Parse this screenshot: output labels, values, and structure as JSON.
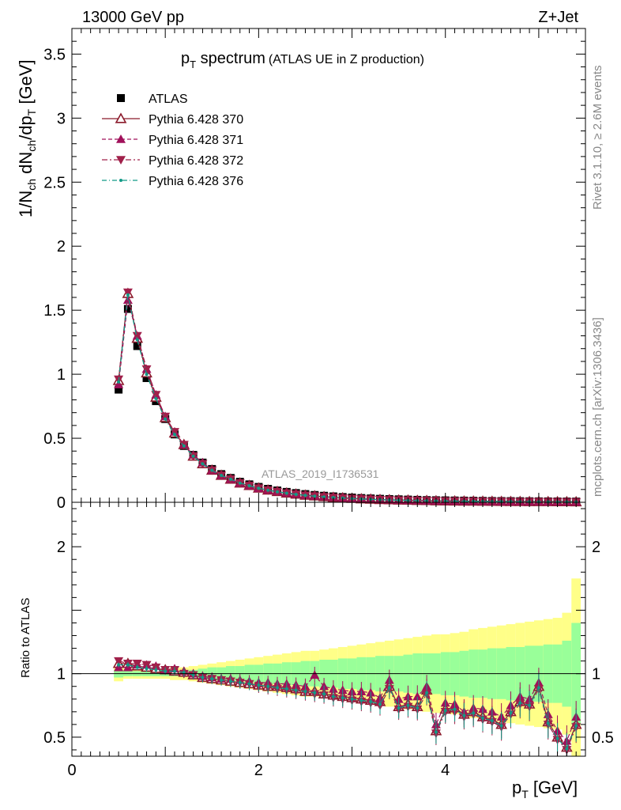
{
  "header": {
    "energy": "13000 GeV pp",
    "process": "Z+Jet"
  },
  "side": {
    "rivet": "Rivet 3.1.10, ≥ 2.6M events",
    "mcplots": "mcplots.cern.ch [arXiv:1306.3436]"
  },
  "watermark": "ATLAS_2019_I1736531",
  "colors": {
    "data": "#000000",
    "p370": "#8b1a2b",
    "p371": "#a0105a",
    "p372": "#a0204a",
    "p376": "#119a86",
    "band_green": "#99ff99",
    "band_yellow": "#ffff88"
  },
  "chart_data": [
    {
      "type": "scatter",
      "title": "p",
      "title_sub": "T",
      "title_tail": " spectrum",
      "title_small": "(ATLAS UE in Z production)",
      "ylabel": "1/N_ch dN_ch/dp_T [GeV]",
      "xlim": [
        0,
        5.5
      ],
      "ylim": [
        0,
        3.7
      ],
      "yticks": [
        0,
        0.5,
        1,
        1.5,
        2,
        2.5,
        3,
        3.5
      ],
      "ytick_labels": [
        "0",
        "0.5",
        "1",
        "1.5",
        "2",
        "2.5",
        "3",
        "3.5"
      ],
      "legend_position": "top-left",
      "x": [
        0.5,
        0.6,
        0.7,
        0.8,
        0.9,
        1.0,
        1.1,
        1.2,
        1.3,
        1.4,
        1.5,
        1.6,
        1.7,
        1.8,
        1.9,
        2.0,
        2.1,
        2.2,
        2.3,
        2.4,
        2.5,
        2.6,
        2.7,
        2.8,
        2.9,
        3.0,
        3.1,
        3.2,
        3.3,
        3.4,
        3.5,
        3.6,
        3.7,
        3.8,
        3.9,
        4.0,
        4.1,
        4.2,
        4.3,
        4.4,
        4.5,
        4.6,
        4.7,
        4.8,
        4.9,
        5.0,
        5.1,
        5.2,
        5.3,
        5.4
      ],
      "series": [
        {
          "name": "ATLAS",
          "marker": "square",
          "values": [
            0.88,
            1.51,
            1.22,
            0.97,
            0.79,
            0.65,
            0.53,
            0.44,
            0.37,
            0.31,
            0.26,
            0.22,
            0.19,
            0.16,
            0.14,
            0.12,
            0.105,
            0.092,
            0.081,
            0.072,
            0.064,
            0.057,
            0.051,
            0.046,
            0.041,
            0.037,
            0.033,
            0.03,
            0.027,
            0.025,
            0.023,
            0.021,
            0.019,
            0.017,
            0.016,
            0.015,
            0.014,
            0.013,
            0.012,
            0.011,
            0.01,
            0.0095,
            0.009,
            0.0085,
            0.008,
            0.0075,
            0.007,
            0.0065,
            0.006,
            0.0058
          ]
        },
        {
          "name": "Pythia 6.428 370",
          "marker": "triangle-open",
          "values": [
            0.95,
            1.63,
            1.28,
            1.01,
            0.82,
            0.66,
            0.54,
            0.45,
            0.36,
            0.3,
            0.25,
            0.21,
            0.18,
            0.15,
            0.13,
            0.11,
            0.095,
            0.083,
            0.072,
            0.063,
            0.055,
            0.049,
            0.043,
            0.038,
            0.034,
            0.03,
            0.026,
            0.024,
            0.021,
            0.019,
            0.017,
            0.016,
            0.014,
            0.013,
            0.011,
            0.01,
            0.009,
            0.0085,
            0.008,
            0.0072,
            0.0066,
            0.006,
            0.0056,
            0.0052,
            0.0048,
            0.0045,
            0.0042,
            0.0038,
            0.0035,
            0.0032
          ]
        },
        {
          "name": "Pythia 6.428 371",
          "marker": "triangle-up",
          "values": [
            0.92,
            1.58,
            1.3,
            1.04,
            0.84,
            0.67,
            0.55,
            0.45,
            0.37,
            0.31,
            0.25,
            0.21,
            0.18,
            0.15,
            0.13,
            0.11,
            0.096,
            0.085,
            0.074,
            0.065,
            0.057,
            0.05,
            0.045,
            0.04,
            0.035,
            0.031,
            0.028,
            0.025,
            0.022,
            0.02,
            0.018,
            0.016,
            0.015,
            0.013,
            0.012,
            0.011,
            0.01,
            0.009,
            0.0085,
            0.0078,
            0.007,
            0.0066,
            0.006,
            0.0056,
            0.0052,
            0.0048,
            0.0045,
            0.0041,
            0.0038,
            0.0035
          ]
        },
        {
          "name": "Pythia 6.428 372",
          "marker": "triangle-down",
          "values": [
            0.96,
            1.64,
            1.3,
            1.04,
            0.84,
            0.67,
            0.55,
            0.45,
            0.36,
            0.3,
            0.25,
            0.21,
            0.18,
            0.15,
            0.13,
            0.11,
            0.094,
            0.082,
            0.071,
            0.062,
            0.054,
            0.048,
            0.042,
            0.037,
            0.033,
            0.029,
            0.026,
            0.023,
            0.02,
            0.018,
            0.016,
            0.015,
            0.013,
            0.012,
            0.011,
            0.0098,
            0.0088,
            0.008,
            0.0074,
            0.0067,
            0.006,
            0.0056,
            0.0051,
            0.0047,
            0.0043,
            0.004,
            0.0037,
            0.0034,
            0.0031,
            0.0028
          ]
        },
        {
          "name": "Pythia 6.428 376",
          "marker": "dot",
          "values": [
            0.94,
            1.62,
            1.27,
            1.0,
            0.81,
            0.65,
            0.53,
            0.44,
            0.36,
            0.3,
            0.25,
            0.21,
            0.18,
            0.15,
            0.13,
            0.11,
            0.094,
            0.082,
            0.071,
            0.062,
            0.054,
            0.048,
            0.042,
            0.037,
            0.033,
            0.029,
            0.026,
            0.023,
            0.02,
            0.018,
            0.016,
            0.015,
            0.013,
            0.012,
            0.011,
            0.0098,
            0.0088,
            0.008,
            0.0074,
            0.0067,
            0.006,
            0.0056,
            0.0051,
            0.0047,
            0.0043,
            0.004,
            0.0037,
            0.0034,
            0.0031,
            0.0028
          ]
        }
      ]
    },
    {
      "type": "line",
      "ylabel": "Ratio to ATLAS",
      "xlabel": "p_T [GeV]",
      "xlim": [
        0,
        5.5
      ],
      "ylim": [
        0.35,
        2.35
      ],
      "xticks": [
        0,
        2,
        4
      ],
      "xtick_labels": [
        "0",
        "2",
        "4"
      ],
      "yticks": [
        0.5,
        1,
        2
      ],
      "ytick_labels": [
        "0.5",
        "1",
        "2"
      ],
      "x": [
        0.5,
        0.6,
        0.7,
        0.8,
        0.9,
        1.0,
        1.1,
        1.2,
        1.3,
        1.4,
        1.5,
        1.6,
        1.7,
        1.8,
        1.9,
        2.0,
        2.1,
        2.2,
        2.3,
        2.4,
        2.5,
        2.6,
        2.7,
        2.8,
        2.9,
        3.0,
        3.1,
        3.2,
        3.3,
        3.4,
        3.5,
        3.6,
        3.7,
        3.8,
        3.9,
        4.0,
        4.1,
        4.2,
        4.3,
        4.4,
        4.5,
        4.6,
        4.7,
        4.8,
        4.9,
        5.0,
        5.1,
        5.2,
        5.3,
        5.4
      ],
      "band_green_halfwidth": [
        0.03,
        0.02,
        0.02,
        0.02,
        0.02,
        0.02,
        0.02,
        0.02,
        0.03,
        0.04,
        0.05,
        0.05,
        0.06,
        0.06,
        0.07,
        0.07,
        0.08,
        0.08,
        0.09,
        0.09,
        0.1,
        0.1,
        0.11,
        0.11,
        0.12,
        0.12,
        0.13,
        0.13,
        0.14,
        0.14,
        0.14,
        0.15,
        0.16,
        0.16,
        0.16,
        0.17,
        0.17,
        0.18,
        0.19,
        0.19,
        0.2,
        0.2,
        0.21,
        0.21,
        0.22,
        0.22,
        0.23,
        0.23,
        0.26,
        0.4
      ],
      "band_yellow_halfwidth": [
        0.06,
        0.04,
        0.04,
        0.04,
        0.04,
        0.04,
        0.05,
        0.05,
        0.06,
        0.07,
        0.08,
        0.09,
        0.1,
        0.11,
        0.12,
        0.13,
        0.14,
        0.15,
        0.16,
        0.17,
        0.18,
        0.18,
        0.19,
        0.2,
        0.21,
        0.22,
        0.23,
        0.24,
        0.25,
        0.26,
        0.27,
        0.28,
        0.29,
        0.3,
        0.31,
        0.31,
        0.32,
        0.33,
        0.35,
        0.36,
        0.37,
        0.38,
        0.39,
        0.4,
        0.41,
        0.42,
        0.43,
        0.44,
        0.48,
        0.75
      ],
      "series": [
        {
          "name": "Pythia 6.428 370",
          "values": [
            1.08,
            1.08,
            1.06,
            1.05,
            1.04,
            1.03,
            1.02,
            1.01,
            0.99,
            0.97,
            0.96,
            0.95,
            0.94,
            0.93,
            0.92,
            0.91,
            0.9,
            0.9,
            0.89,
            0.88,
            0.86,
            0.86,
            0.84,
            0.83,
            0.82,
            0.81,
            0.8,
            0.79,
            0.78,
            0.9,
            0.74,
            0.76,
            0.74,
            0.87,
            0.55,
            0.72,
            0.73,
            0.68,
            0.7,
            0.66,
            0.64,
            0.6,
            0.7,
            0.78,
            0.76,
            0.9,
            0.62,
            0.5,
            0.42,
            0.6
          ]
        },
        {
          "name": "Pythia 6.428 371",
          "values": [
            1.05,
            1.05,
            1.07,
            1.07,
            1.06,
            1.03,
            1.04,
            1.02,
            1.0,
            0.98,
            0.97,
            0.96,
            0.96,
            0.95,
            0.94,
            0.93,
            0.93,
            0.92,
            0.92,
            0.91,
            0.9,
            0.99,
            0.9,
            0.88,
            0.87,
            0.86,
            0.86,
            0.85,
            0.81,
            0.95,
            0.8,
            0.82,
            0.82,
            0.9,
            0.6,
            0.77,
            0.76,
            0.7,
            0.73,
            0.72,
            0.7,
            0.66,
            0.75,
            0.82,
            0.8,
            0.93,
            0.68,
            0.55,
            0.47,
            0.66
          ]
        },
        {
          "name": "Pythia 6.428 372",
          "values": [
            1.1,
            1.08,
            1.08,
            1.07,
            1.05,
            1.03,
            1.03,
            1.0,
            0.99,
            0.97,
            0.96,
            0.95,
            0.94,
            0.93,
            0.92,
            0.9,
            0.89,
            0.88,
            0.87,
            0.86,
            0.85,
            0.84,
            0.83,
            0.81,
            0.8,
            0.79,
            0.78,
            0.77,
            0.75,
            0.88,
            0.72,
            0.74,
            0.72,
            0.84,
            0.53,
            0.7,
            0.7,
            0.66,
            0.68,
            0.64,
            0.62,
            0.58,
            0.68,
            0.76,
            0.74,
            0.88,
            0.6,
            0.48,
            0.4,
            0.58
          ]
        },
        {
          "name": "Pythia 6.428 376",
          "values": [
            1.07,
            1.07,
            1.05,
            1.04,
            1.03,
            1.02,
            1.02,
            1.01,
            0.99,
            0.97,
            0.96,
            0.95,
            0.94,
            0.93,
            0.92,
            0.91,
            0.9,
            0.89,
            0.88,
            0.87,
            0.86,
            0.85,
            0.84,
            0.82,
            0.81,
            0.8,
            0.79,
            0.78,
            0.76,
            0.89,
            0.73,
            0.75,
            0.73,
            0.85,
            0.54,
            0.71,
            0.72,
            0.67,
            0.69,
            0.65,
            0.63,
            0.59,
            0.69,
            0.77,
            0.75,
            0.89,
            0.61,
            0.49,
            0.41,
            0.59
          ]
        }
      ]
    }
  ]
}
